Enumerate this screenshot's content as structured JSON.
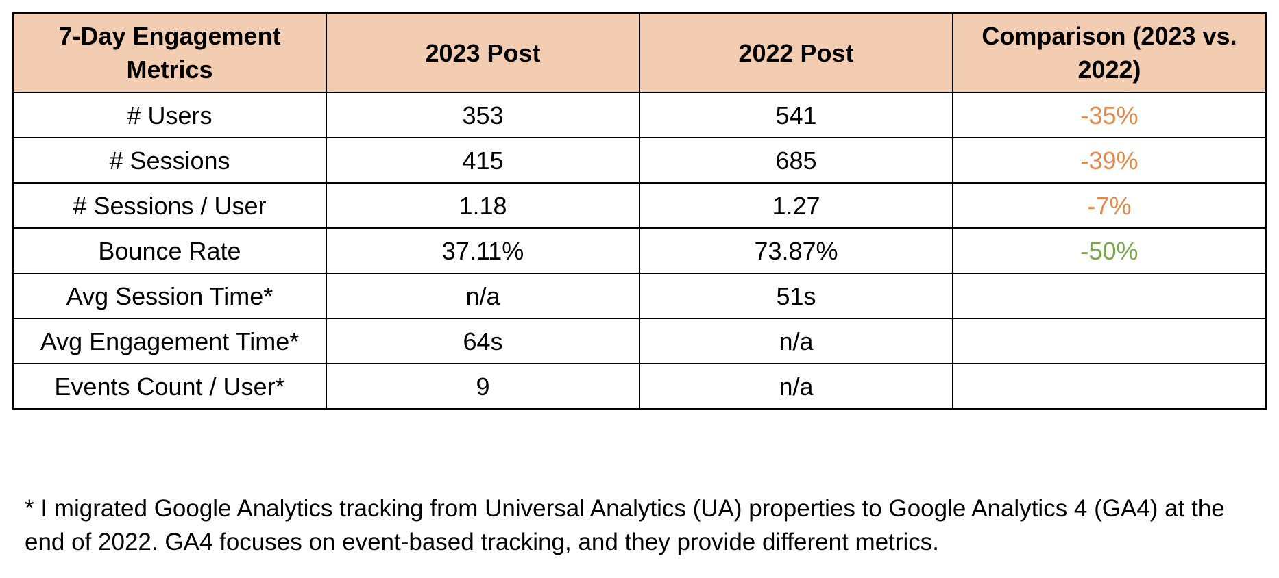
{
  "table": {
    "headers": [
      "7-Day Engagement Metrics",
      "2023 Post",
      "2022 Post",
      "Comparison (2023 vs. 2022)"
    ],
    "header_background": "#f3cdb2",
    "rows": [
      {
        "metric": "# Users",
        "post_2023": "353",
        "post_2022": "541",
        "comparison": "-35%",
        "comparison_color": "#e08a4e"
      },
      {
        "metric": "# Sessions",
        "post_2023": "415",
        "post_2022": "685",
        "comparison": "-39%",
        "comparison_color": "#e08a4e"
      },
      {
        "metric": "# Sessions / User",
        "post_2023": "1.18",
        "post_2022": "1.27",
        "comparison": "-7%",
        "comparison_color": "#e08a4e"
      },
      {
        "metric": "Bounce Rate",
        "post_2023": "37.11%",
        "post_2022": "73.87%",
        "comparison": "-50%",
        "comparison_color": "#7aa84e"
      },
      {
        "metric": "Avg Session Time*",
        "post_2023": "n/a",
        "post_2022": "51s",
        "comparison": "",
        "comparison_color": ""
      },
      {
        "metric": "Avg Engagement Time*",
        "post_2023": "64s",
        "post_2022": "n/a",
        "comparison": "",
        "comparison_color": ""
      },
      {
        "metric": "Events Count / User*",
        "post_2023": "9",
        "post_2022": "n/a",
        "comparison": "",
        "comparison_color": ""
      }
    ]
  },
  "footnote": "* I migrated Google Analytics tracking from Universal Analytics (UA) properties to Google Analytics 4 (GA4) at the end of 2022. GA4 focuses on event-based tracking, and they provide different metrics."
}
